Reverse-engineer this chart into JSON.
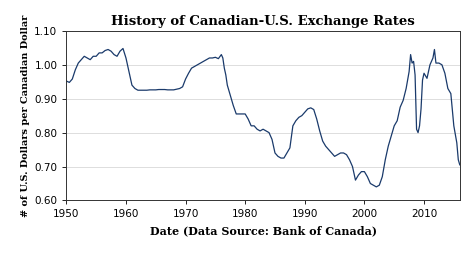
{
  "title": "History of Canadian-U.S. Exchange Rates",
  "xlabel": "Date (Data Source: Bank of Canada)",
  "ylabel": "# of U.S. Dollars per Canadian Dollar",
  "xlim": [
    1950,
    2016
  ],
  "ylim": [
    0.6,
    1.1
  ],
  "yticks": [
    0.6,
    0.7,
    0.8,
    0.9,
    1.0,
    1.1
  ],
  "xticks": [
    1950,
    1960,
    1970,
    1980,
    1990,
    2000,
    2010
  ],
  "line_color": "#1a3a6b",
  "line_width": 0.9,
  "background_color": "#ffffff",
  "title_fontsize": 9.5,
  "label_fontsize": 8,
  "tick_fontsize": 7.5,
  "ylabel_fontsize": 7,
  "data": [
    [
      1950.0,
      0.952
    ],
    [
      1950.5,
      0.948
    ],
    [
      1951.0,
      0.958
    ],
    [
      1951.5,
      0.985
    ],
    [
      1952.0,
      1.005
    ],
    [
      1952.5,
      1.015
    ],
    [
      1953.0,
      1.025
    ],
    [
      1953.5,
      1.02
    ],
    [
      1954.0,
      1.015
    ],
    [
      1954.5,
      1.025
    ],
    [
      1955.0,
      1.025
    ],
    [
      1955.5,
      1.035
    ],
    [
      1956.0,
      1.035
    ],
    [
      1956.5,
      1.042
    ],
    [
      1957.0,
      1.045
    ],
    [
      1957.5,
      1.04
    ],
    [
      1958.0,
      1.03
    ],
    [
      1958.5,
      1.025
    ],
    [
      1959.0,
      1.04
    ],
    [
      1959.5,
      1.048
    ],
    [
      1960.0,
      1.02
    ],
    [
      1960.5,
      0.98
    ],
    [
      1961.0,
      0.94
    ],
    [
      1961.5,
      0.93
    ],
    [
      1962.0,
      0.925
    ],
    [
      1962.5,
      0.925
    ],
    [
      1963.0,
      0.925
    ],
    [
      1963.5,
      0.925
    ],
    [
      1964.0,
      0.926
    ],
    [
      1964.5,
      0.926
    ],
    [
      1965.0,
      0.926
    ],
    [
      1965.5,
      0.927
    ],
    [
      1966.0,
      0.927
    ],
    [
      1966.5,
      0.927
    ],
    [
      1967.0,
      0.926
    ],
    [
      1967.5,
      0.926
    ],
    [
      1968.0,
      0.926
    ],
    [
      1968.5,
      0.928
    ],
    [
      1969.0,
      0.93
    ],
    [
      1969.5,
      0.935
    ],
    [
      1970.0,
      0.958
    ],
    [
      1970.5,
      0.975
    ],
    [
      1971.0,
      0.99
    ],
    [
      1971.5,
      0.995
    ],
    [
      1972.0,
      1.0
    ],
    [
      1972.5,
      1.005
    ],
    [
      1973.0,
      1.01
    ],
    [
      1973.5,
      1.015
    ],
    [
      1974.0,
      1.02
    ],
    [
      1974.5,
      1.02
    ],
    [
      1975.0,
      1.022
    ],
    [
      1975.5,
      1.018
    ],
    [
      1976.0,
      1.03
    ],
    [
      1976.25,
      1.02
    ],
    [
      1976.5,
      0.99
    ],
    [
      1976.75,
      0.97
    ],
    [
      1977.0,
      0.94
    ],
    [
      1977.5,
      0.91
    ],
    [
      1978.0,
      0.88
    ],
    [
      1978.5,
      0.855
    ],
    [
      1979.0,
      0.855
    ],
    [
      1979.5,
      0.855
    ],
    [
      1980.0,
      0.855
    ],
    [
      1980.5,
      0.84
    ],
    [
      1981.0,
      0.82
    ],
    [
      1981.5,
      0.82
    ],
    [
      1982.0,
      0.81
    ],
    [
      1982.5,
      0.805
    ],
    [
      1983.0,
      0.81
    ],
    [
      1983.5,
      0.805
    ],
    [
      1984.0,
      0.8
    ],
    [
      1984.5,
      0.78
    ],
    [
      1985.0,
      0.74
    ],
    [
      1985.5,
      0.73
    ],
    [
      1986.0,
      0.725
    ],
    [
      1986.5,
      0.725
    ],
    [
      1987.0,
      0.74
    ],
    [
      1987.5,
      0.755
    ],
    [
      1988.0,
      0.82
    ],
    [
      1988.5,
      0.835
    ],
    [
      1989.0,
      0.845
    ],
    [
      1989.5,
      0.85
    ],
    [
      1990.0,
      0.86
    ],
    [
      1990.5,
      0.87
    ],
    [
      1991.0,
      0.873
    ],
    [
      1991.5,
      0.868
    ],
    [
      1992.0,
      0.84
    ],
    [
      1992.5,
      0.805
    ],
    [
      1993.0,
      0.775
    ],
    [
      1993.5,
      0.76
    ],
    [
      1994.0,
      0.75
    ],
    [
      1994.5,
      0.74
    ],
    [
      1995.0,
      0.73
    ],
    [
      1995.5,
      0.735
    ],
    [
      1996.0,
      0.74
    ],
    [
      1996.5,
      0.74
    ],
    [
      1997.0,
      0.735
    ],
    [
      1997.5,
      0.72
    ],
    [
      1998.0,
      0.7
    ],
    [
      1998.5,
      0.66
    ],
    [
      1999.0,
      0.675
    ],
    [
      1999.5,
      0.685
    ],
    [
      2000.0,
      0.685
    ],
    [
      2000.5,
      0.67
    ],
    [
      2001.0,
      0.65
    ],
    [
      2001.5,
      0.645
    ],
    [
      2002.0,
      0.64
    ],
    [
      2002.5,
      0.645
    ],
    [
      2003.0,
      0.67
    ],
    [
      2003.5,
      0.72
    ],
    [
      2004.0,
      0.76
    ],
    [
      2004.5,
      0.79
    ],
    [
      2005.0,
      0.82
    ],
    [
      2005.5,
      0.835
    ],
    [
      2006.0,
      0.875
    ],
    [
      2006.5,
      0.895
    ],
    [
      2007.0,
      0.93
    ],
    [
      2007.5,
      0.98
    ],
    [
      2007.75,
      1.03
    ],
    [
      2008.0,
      1.005
    ],
    [
      2008.25,
      1.01
    ],
    [
      2008.5,
      0.97
    ],
    [
      2008.75,
      0.81
    ],
    [
      2009.0,
      0.8
    ],
    [
      2009.25,
      0.82
    ],
    [
      2009.5,
      0.87
    ],
    [
      2009.75,
      0.955
    ],
    [
      2010.0,
      0.975
    ],
    [
      2010.5,
      0.96
    ],
    [
      2011.0,
      1.0
    ],
    [
      2011.5,
      1.02
    ],
    [
      2011.75,
      1.045
    ],
    [
      2012.0,
      1.005
    ],
    [
      2012.5,
      1.005
    ],
    [
      2013.0,
      1.0
    ],
    [
      2013.5,
      0.975
    ],
    [
      2014.0,
      0.93
    ],
    [
      2014.5,
      0.915
    ],
    [
      2015.0,
      0.82
    ],
    [
      2015.5,
      0.77
    ],
    [
      2015.75,
      0.72
    ],
    [
      2016.0,
      0.705
    ]
  ]
}
